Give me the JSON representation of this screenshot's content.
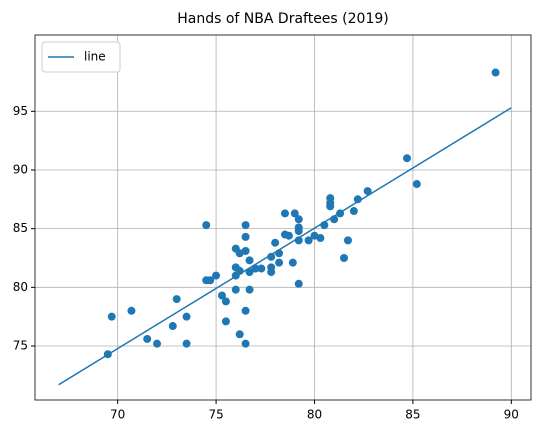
{
  "chart_data": {
    "type": "scatter",
    "title": "Hands of NBA Draftees (2019)",
    "xlim": [
      65.8,
      91.0
    ],
    "ylim": [
      70.4,
      101.5
    ],
    "xticks": [
      70,
      75,
      80,
      85,
      90
    ],
    "yticks": [
      75,
      80,
      85,
      90,
      95
    ],
    "grid": true,
    "legend": "upper left",
    "series": [
      {
        "type": "line",
        "name": "line",
        "color": "#1f77b4",
        "x": [
          67,
          90
        ],
        "values": [
          71.7,
          95.3
        ]
      },
      {
        "type": "scatter",
        "color": "#1f77b4",
        "x": [
          69.5,
          69.7,
          70.7,
          71.5,
          72.0,
          72.8,
          73.0,
          73.5,
          73.5,
          74.5,
          74.5,
          74.7,
          75.0,
          75.3,
          75.5,
          75.5,
          76.0,
          76.0,
          76.0,
          76.0,
          76.2,
          76.2,
          76.2,
          76.5,
          76.5,
          76.5,
          76.5,
          76.5,
          76.7,
          76.7,
          76.7,
          77.0,
          77.3,
          77.8,
          77.8,
          77.8,
          78.0,
          78.2,
          78.2,
          78.5,
          78.5,
          78.7,
          78.9,
          79.0,
          79.2,
          79.2,
          79.2,
          79.2,
          79.2,
          79.7,
          80.0,
          80.3,
          80.5,
          80.8,
          80.8,
          80.8,
          81.0,
          81.3,
          81.5,
          81.7,
          82.0,
          82.2,
          82.7,
          84.7,
          85.2,
          89.2
        ],
        "values": [
          74.3,
          77.5,
          78.0,
          75.6,
          75.2,
          76.7,
          79.0,
          77.5,
          75.2,
          85.3,
          80.6,
          80.6,
          81.0,
          79.3,
          78.8,
          77.1,
          83.3,
          81.7,
          81.0,
          79.8,
          82.9,
          81.4,
          76.0,
          85.3,
          84.3,
          83.1,
          78.0,
          75.2,
          82.3,
          81.3,
          79.8,
          81.6,
          81.6,
          81.7,
          82.6,
          81.3,
          83.8,
          82.9,
          82.1,
          86.3,
          84.5,
          84.4,
          82.1,
          86.3,
          84.0,
          85.8,
          85.1,
          84.8,
          80.3,
          84.0,
          84.4,
          84.2,
          85.3,
          87.6,
          87.2,
          86.9,
          85.8,
          86.3,
          82.5,
          84.0,
          86.5,
          87.5,
          88.2,
          91.0,
          88.8,
          98.3
        ]
      }
    ]
  }
}
